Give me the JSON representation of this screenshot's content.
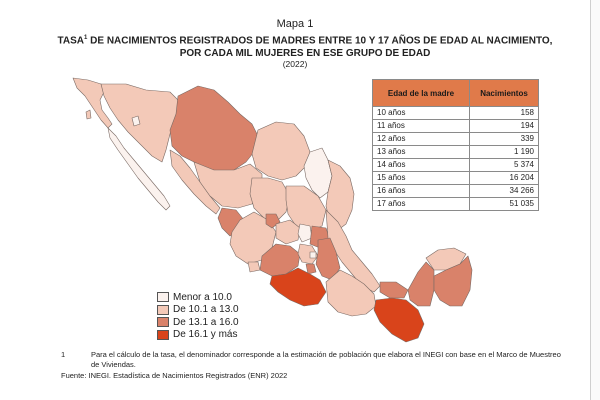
{
  "header": {
    "map_label": "Mapa 1",
    "title_line1_pre": "TASA",
    "title_sup": "1",
    "title_line1_post": " DE NACIMIENTOS REGISTRADOS DE MADRES ENTRE 10 Y 17 AÑOS DE EDAD AL NACIMIENTO,",
    "title_line2": "POR CADA MIL MUJERES EN ESE GRUPO DE EDAD",
    "year": "(2022)"
  },
  "table": {
    "col_age": "Edad de la madre",
    "col_births": "Nacimientos",
    "rows": [
      {
        "age": "10 años",
        "births": "158"
      },
      {
        "age": "11 años",
        "births": "194"
      },
      {
        "age": "12 años",
        "births": "339"
      },
      {
        "age": "13 años",
        "births": "1 190"
      },
      {
        "age": "14 años",
        "births": "5 374"
      },
      {
        "age": "15 años",
        "births": "16 204"
      },
      {
        "age": "16 años",
        "births": "34 266"
      },
      {
        "age": "17 años",
        "births": "51 035"
      }
    ]
  },
  "legend": [
    {
      "label": "Menor a 10.0",
      "color": "#fbf2ee"
    },
    {
      "label": "De 10.1 a 13.0",
      "color": "#f3c9b8"
    },
    {
      "label": "De 13.1 a 16.0",
      "color": "#d9826a"
    },
    {
      "label": "De 16.1 y más",
      "color": "#d9441b"
    }
  ],
  "footnote": {
    "num": "1",
    "text": "Para el cálculo de la tasa, el denominador corresponde a la estimación de población que elabora el INEGI con base en el Marco de Muestreo de Viviendas."
  },
  "source": "Fuente: INEGI. Estadística de Nacimientos Registrados (ENR) 2022"
}
